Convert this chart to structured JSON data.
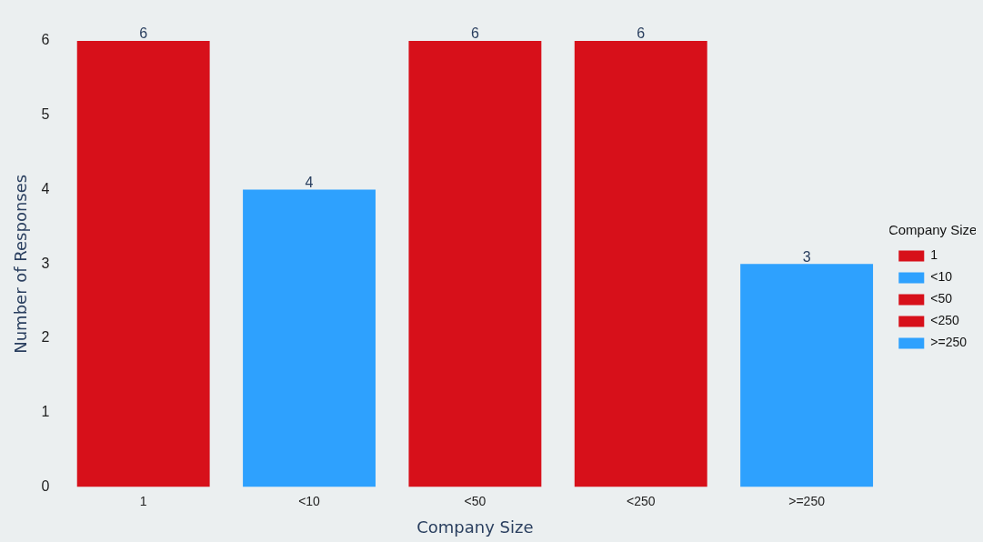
{
  "chart_data": {
    "type": "bar",
    "xlabel": "Company Size",
    "ylabel": "Number of Responses",
    "legend_title": "Company Size",
    "categories": [
      "1",
      "<10",
      "<50",
      "<250",
      ">=250"
    ],
    "series": [
      {
        "name": "1",
        "color": "#d7101a",
        "values": [
          6,
          null,
          null,
          null,
          null
        ]
      },
      {
        "name": "<10",
        "color": "#2ea1fe",
        "values": [
          null,
          4,
          null,
          null,
          null
        ]
      },
      {
        "name": "<50",
        "color": "#d7101a",
        "values": [
          null,
          null,
          6,
          null,
          null
        ]
      },
      {
        "name": "<250",
        "color": "#d7101a",
        "values": [
          null,
          null,
          null,
          6,
          null
        ]
      },
      {
        "name": ">=250",
        "color": "#2ea1fe",
        "values": [
          null,
          null,
          null,
          null,
          3
        ]
      }
    ],
    "ylim": [
      0,
      6
    ],
    "yticks": [
      0,
      1,
      2,
      3,
      4,
      5,
      6
    ],
    "grid": false,
    "legend": "right",
    "data_labels": true
  }
}
